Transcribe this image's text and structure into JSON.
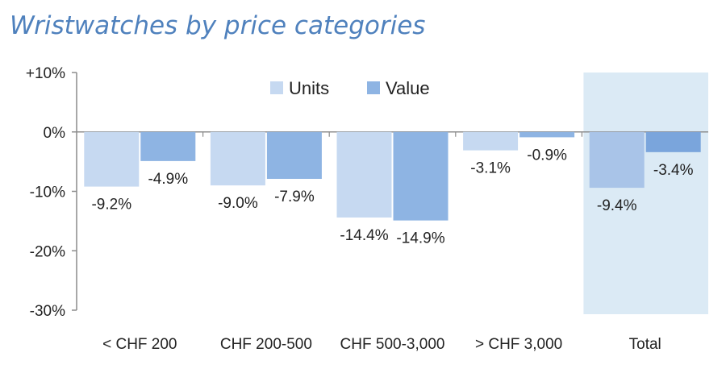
{
  "chart_data": {
    "type": "bar",
    "title": "Wristwatches by price categories",
    "categories": [
      "< CHF 200",
      "CHF 200-500",
      "CHF 500-3,000",
      "> CHF 3,000",
      "Total"
    ],
    "series": [
      {
        "name": "Units",
        "values": [
          -9.2,
          -9.0,
          -14.4,
          -3.1,
          -9.4
        ],
        "labels": [
          "-9.2%",
          "-9.0%",
          "-14.4%",
          "-3.1%",
          "-9.4%"
        ],
        "color": "#c6d9f1"
      },
      {
        "name": "Value",
        "values": [
          -4.9,
          -7.9,
          -14.9,
          -0.9,
          -3.4
        ],
        "labels": [
          "-4.9%",
          "-7.9%",
          "-14.9%",
          "-0.9%",
          "-3.4%"
        ],
        "color": "#8eb4e3"
      }
    ],
    "yticks": [
      "+10%",
      "0%",
      "-10%",
      "-20%",
      "-30%"
    ],
    "ytick_values": [
      10,
      0,
      -10,
      -20,
      -30
    ],
    "ylim": [
      -30,
      10
    ],
    "legend": "top-center",
    "highlight_category": "Total",
    "colors": {
      "title": "#4f81bd",
      "highlight_units": "#a9c4e8",
      "highlight_value": "#7aa5dc",
      "highlight_bg": "#dbeaf5",
      "axis": "#8c8c8c"
    }
  }
}
